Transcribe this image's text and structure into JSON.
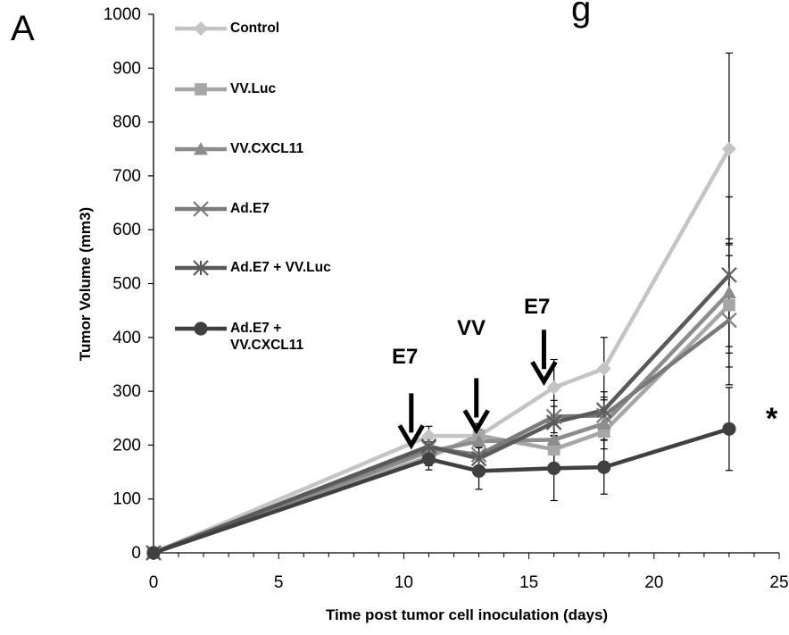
{
  "panel_letter": "A",
  "title_fragment": "g",
  "significance_marker": "*",
  "chart_data": {
    "type": "line",
    "title": "",
    "xlabel": "Time post tumor cell inoculation (days)",
    "ylabel": "Tumor Volume (mm3)",
    "xlim": [
      0,
      25
    ],
    "ylim": [
      0,
      1000
    ],
    "x_ticks": [
      "0",
      "5",
      "10",
      "15",
      "20",
      "25"
    ],
    "y_ticks": [
      "0",
      "100",
      "200",
      "300",
      "400",
      "500",
      "600",
      "700",
      "800",
      "900",
      "1000"
    ],
    "grid": false,
    "legend_position": "top-left",
    "x": [
      0,
      11,
      13,
      16,
      18,
      23
    ],
    "series": [
      {
        "name": "Control",
        "marker": "diamond",
        "color": "#c4c4c4",
        "values": [
          0,
          217,
          217,
          307,
          342,
          750
        ],
        "errors": [
          0,
          18,
          22,
          52,
          58,
          178
        ]
      },
      {
        "name": "VV.Luc",
        "marker": "square",
        "color": "#a6a6a6",
        "values": [
          0,
          178,
          218,
          192,
          225,
          460
        ],
        "errors": [
          0,
          16,
          22,
          26,
          32,
          115
        ]
      },
      {
        "name": "VV.CXCL11",
        "marker": "triangle",
        "color": "#8c8c8c",
        "values": [
          0,
          188,
          207,
          210,
          240,
          483
        ],
        "errors": [
          0,
          18,
          22,
          28,
          30,
          100
        ]
      },
      {
        "name": "Ad.E7",
        "marker": "x",
        "color": "#7a7a7a",
        "values": [
          0,
          195,
          182,
          253,
          255,
          432
        ],
        "errors": [
          0,
          16,
          22,
          30,
          34,
          120
        ]
      },
      {
        "name": "Ad.E7 + VV.Luc",
        "marker": "asterisk",
        "color": "#5a5a5a",
        "values": [
          0,
          198,
          175,
          242,
          265,
          516
        ],
        "errors": [
          0,
          16,
          22,
          30,
          34,
          145
        ]
      },
      {
        "name": "Ad.E7 + VV.CXCL11",
        "marker": "circle",
        "color": "#404040",
        "values": [
          0,
          174,
          152,
          157,
          159,
          230
        ],
        "errors": [
          0,
          20,
          34,
          60,
          50,
          77
        ]
      }
    ],
    "legend_labels": [
      [
        "Control"
      ],
      [
        "VV.Luc"
      ],
      [
        "VV.CXCL11"
      ],
      [
        "Ad.E7"
      ],
      [
        "Ad.E7 + VV.Luc"
      ],
      [
        "Ad.E7 +",
        "VV.CXCL11"
      ]
    ],
    "annotations": [
      {
        "text": "E7",
        "x": 10.3,
        "y": 200
      },
      {
        "text": "VV",
        "x": 12.9,
        "y": 228
      },
      {
        "text": "E7",
        "x": 15.6,
        "y": 318
      }
    ]
  }
}
